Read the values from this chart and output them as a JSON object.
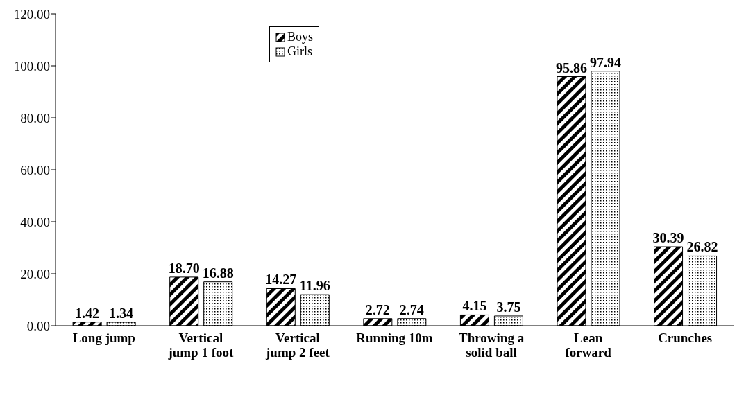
{
  "chart_data": {
    "type": "bar",
    "categories": [
      "Long jump",
      "Vertical jump 1 foot",
      "Vertical jump 2 feet",
      "Running 10m",
      "Throwing a solid ball",
      "Lean forward",
      "Crunches"
    ],
    "series": [
      {
        "name": "Boys",
        "color": "#000000",
        "values": [
          1.42,
          18.7,
          14.27,
          2.72,
          4.15,
          95.86,
          30.39
        ],
        "value_labels": [
          "1.42",
          "18.70",
          "14.27",
          "2.72",
          "4.15",
          "95.86",
          "30.39"
        ]
      },
      {
        "name": "Girls",
        "color": "#000000",
        "values": [
          1.34,
          16.88,
          11.96,
          2.74,
          3.75,
          97.94,
          26.82
        ],
        "value_labels": [
          "1.34",
          "16.88",
          "11.96",
          "2.74",
          "3.75",
          "97.94",
          "26.82"
        ]
      }
    ],
    "ylim": [
      0,
      120
    ],
    "yticks": [
      {
        "value": 0,
        "label": "0.00"
      },
      {
        "value": 20,
        "label": "20.00"
      },
      {
        "value": 40,
        "label": "40.00"
      },
      {
        "value": 60,
        "label": "60.00"
      },
      {
        "value": 80,
        "label": "80.00"
      },
      {
        "value": 100,
        "label": "100.00"
      },
      {
        "value": 120,
        "label": "120.00"
      }
    ],
    "grid": false,
    "legend": "top"
  }
}
